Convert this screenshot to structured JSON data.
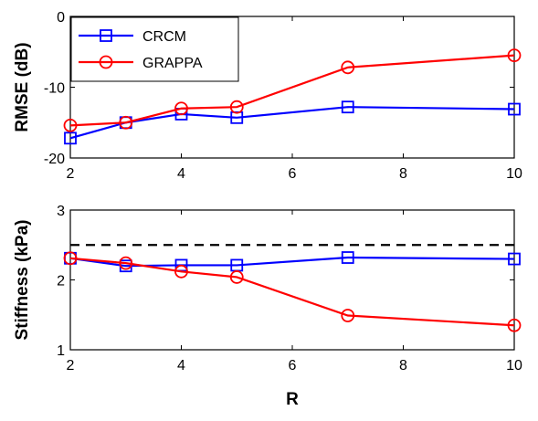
{
  "chart_data": [
    {
      "type": "line",
      "xlabel": "",
      "ylabel": "RMSE (dB)",
      "xlim": [
        2,
        10
      ],
      "ylim": [
        -20,
        0
      ],
      "xticks": [
        "2",
        "4",
        "6",
        "8",
        "10"
      ],
      "yticks": [
        "-20",
        "-10",
        "0"
      ],
      "x": [
        2,
        3,
        4,
        5,
        7,
        10
      ],
      "series": [
        {
          "name": "CRCM",
          "marker": "square",
          "color": "#0000ff",
          "values": [
            -17.2,
            -15.0,
            -13.8,
            -14.3,
            -12.8,
            -13.1
          ]
        },
        {
          "name": "GRAPPA",
          "marker": "circle",
          "color": "#ff0000",
          "values": [
            -15.4,
            -15.0,
            -13.0,
            -12.8,
            -7.2,
            -5.5
          ]
        }
      ],
      "legend": {
        "position": "top-left"
      },
      "grid": false
    },
    {
      "type": "line",
      "xlabel": "R",
      "ylabel": "Stiffness (kPa)",
      "xlim": [
        2,
        10
      ],
      "ylim": [
        1,
        3
      ],
      "xticks": [
        "2",
        "4",
        "6",
        "8",
        "10"
      ],
      "yticks": [
        "1",
        "2",
        "3"
      ],
      "x": [
        2,
        3,
        4,
        5,
        7,
        10
      ],
      "series": [
        {
          "name": "CRCM",
          "marker": "square",
          "color": "#0000ff",
          "values": [
            2.31,
            2.2,
            2.21,
            2.21,
            2.32,
            2.3
          ]
        },
        {
          "name": "GRAPPA",
          "marker": "circle",
          "color": "#ff0000",
          "values": [
            2.31,
            2.24,
            2.12,
            2.04,
            1.49,
            1.35
          ]
        }
      ],
      "reference_line": {
        "y": 2.5,
        "style": "dashed",
        "color": "#000000"
      },
      "grid": false
    }
  ]
}
